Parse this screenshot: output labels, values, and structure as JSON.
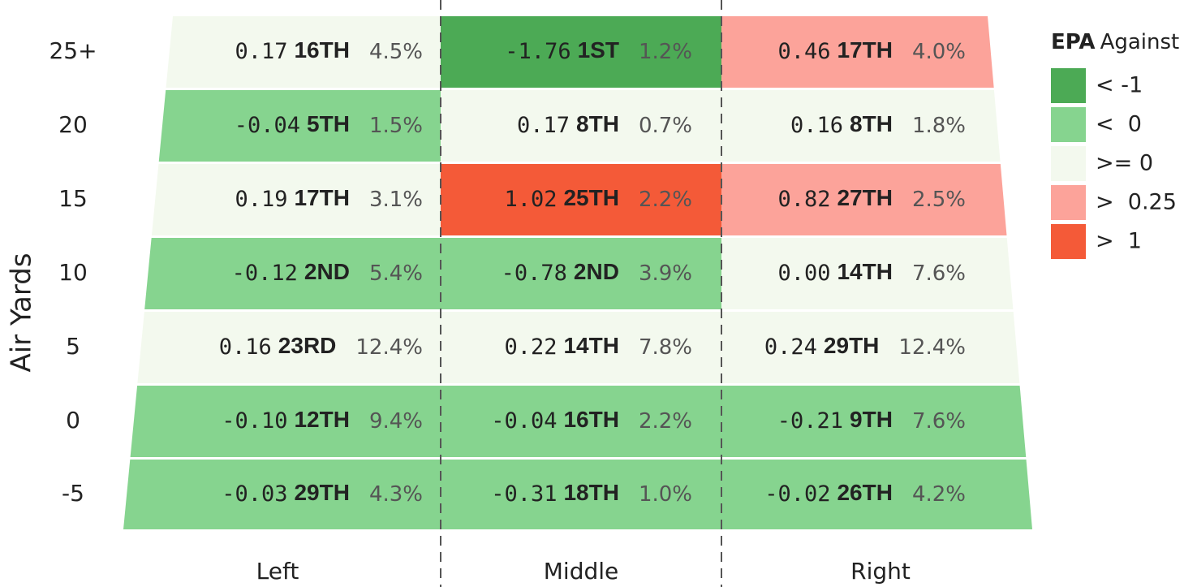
{
  "y_axis_label": "Air Yards",
  "columns": [
    "Left",
    "Middle",
    "Right"
  ],
  "rows": [
    {
      "label": "25+",
      "cells": [
        {
          "epa": "0.17",
          "rank": "16TH",
          "pct": "4.5%",
          "color": "#f3f9ee"
        },
        {
          "epa": "-1.76",
          "rank": "1ST",
          "pct": "1.2%",
          "color": "#4caa55"
        },
        {
          "epa": "0.46",
          "rank": "17TH",
          "pct": "4.0%",
          "color": "#fca39a"
        }
      ]
    },
    {
      "label": "20",
      "cells": [
        {
          "epa": "-0.04",
          "rank": "5TH",
          "pct": "1.5%",
          "color": "#86d48f"
        },
        {
          "epa": "0.17",
          "rank": "8TH",
          "pct": "0.7%",
          "color": "#f3f9ee"
        },
        {
          "epa": "0.16",
          "rank": "8TH",
          "pct": "1.8%",
          "color": "#f3f9ee"
        }
      ]
    },
    {
      "label": "15",
      "cells": [
        {
          "epa": "0.19",
          "rank": "17TH",
          "pct": "3.1%",
          "color": "#f3f9ee"
        },
        {
          "epa": "1.02",
          "rank": "25TH",
          "pct": "2.2%",
          "color": "#f45a38"
        },
        {
          "epa": "0.82",
          "rank": "27TH",
          "pct": "2.5%",
          "color": "#fca39a"
        }
      ]
    },
    {
      "label": "10",
      "cells": [
        {
          "epa": "-0.12",
          "rank": "2ND",
          "pct": "5.4%",
          "color": "#86d48f"
        },
        {
          "epa": "-0.78",
          "rank": "2ND",
          "pct": "3.9%",
          "color": "#86d48f"
        },
        {
          "epa": "0.00",
          "rank": "14TH",
          "pct": "7.6%",
          "color": "#f3f9ee"
        }
      ]
    },
    {
      "label": "5",
      "cells": [
        {
          "epa": "0.16",
          "rank": "23RD",
          "pct": "12.4%",
          "color": "#f3f9ee"
        },
        {
          "epa": "0.22",
          "rank": "14TH",
          "pct": "7.8%",
          "color": "#f3f9ee"
        },
        {
          "epa": "0.24",
          "rank": "29TH",
          "pct": "12.4%",
          "color": "#f3f9ee"
        }
      ]
    },
    {
      "label": "0",
      "cells": [
        {
          "epa": "-0.10",
          "rank": "12TH",
          "pct": "9.4%",
          "color": "#86d48f"
        },
        {
          "epa": "-0.04",
          "rank": "16TH",
          "pct": "2.2%",
          "color": "#86d48f"
        },
        {
          "epa": "-0.21",
          "rank": "9TH",
          "pct": "7.6%",
          "color": "#86d48f"
        }
      ]
    },
    {
      "label": "-5",
      "cells": [
        {
          "epa": "-0.03",
          "rank": "29TH",
          "pct": "4.3%",
          "color": "#86d48f"
        },
        {
          "epa": "-0.31",
          "rank": "18TH",
          "pct": "1.0%",
          "color": "#86d48f"
        },
        {
          "epa": "-0.02",
          "rank": "26TH",
          "pct": "4.2%",
          "color": "#86d48f"
        }
      ]
    }
  ],
  "legend": {
    "title_bold": "EPA",
    "title": "Against",
    "items": [
      {
        "label": "< -1",
        "color": "#4caa55"
      },
      {
        "label": "<  0",
        "color": "#86d48f"
      },
      {
        "label": ">= 0",
        "color": "#f3f9ee"
      },
      {
        "label": ">  0.25",
        "color": "#fca39a"
      },
      {
        "label": ">  1",
        "color": "#f45a38"
      }
    ]
  }
}
